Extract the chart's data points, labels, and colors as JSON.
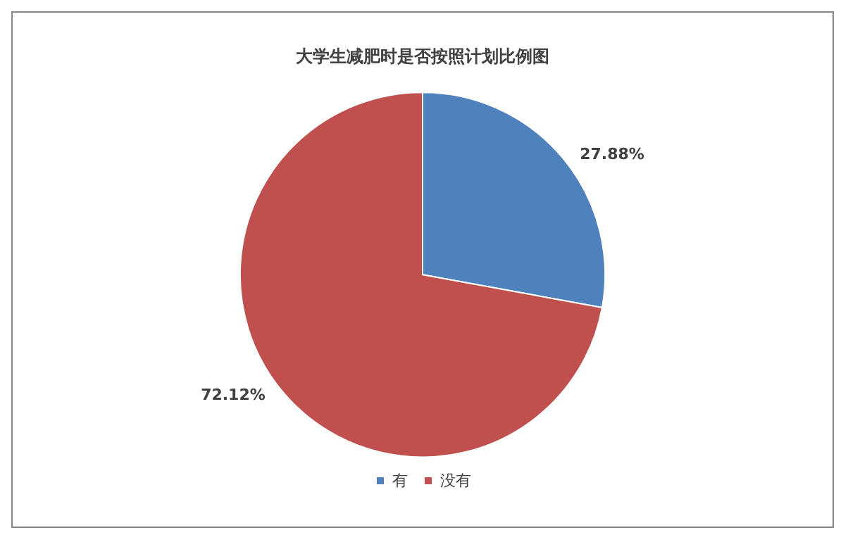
{
  "chart_data": {
    "type": "pie",
    "title": "大学生减肥时是否按照计划比例图",
    "categories": [
      "有",
      "没有"
    ],
    "values": [
      27.88,
      72.12
    ],
    "colors": [
      "#4f81bd",
      "#c0504d"
    ],
    "value_labels": [
      "27.88%",
      "72.12%"
    ],
    "legend": "bottom"
  }
}
